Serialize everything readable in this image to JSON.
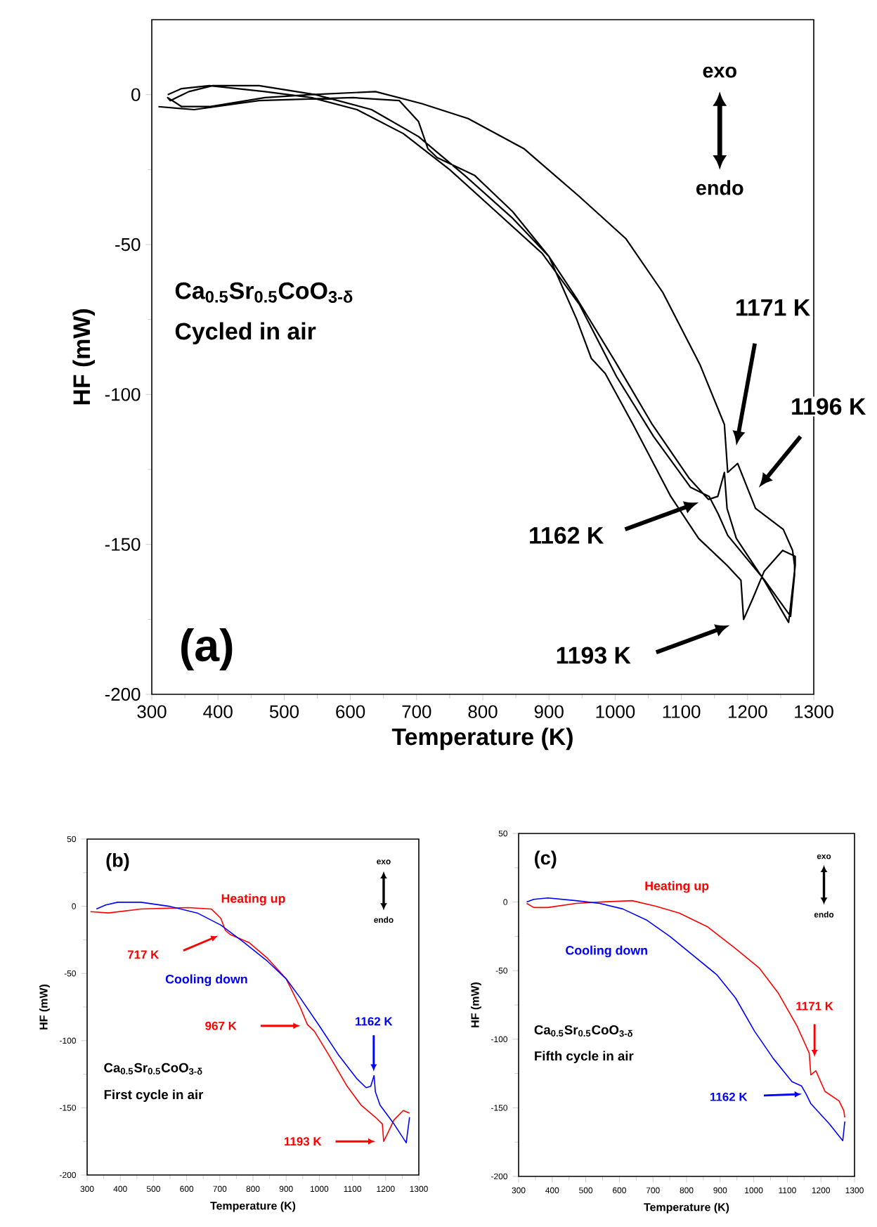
{
  "chart_data": [
    {
      "type": "line",
      "xlabel": "Temperature (K)",
      "ylabel": "HF (mW)",
      "xlim": [
        300,
        1300
      ],
      "ylim": [
        -200,
        25
      ],
      "xticks": [
        300,
        400,
        500,
        600,
        700,
        800,
        900,
        1000,
        1100,
        1200,
        1300
      ],
      "yticks": [
        -200,
        -150,
        -100,
        -50,
        0
      ],
      "series": [
        {
          "color": "#000000",
          "x": [
            310,
            364,
            462,
            604,
            674,
            703,
            717,
            731,
            788,
            845,
            900,
            942,
            964,
            985,
            1027,
            1084,
            1126,
            1169,
            1190,
            1194,
            1208,
            1225,
            1253,
            1272,
            1272,
            1262,
            1225,
            1183,
            1169,
            1165,
            1155,
            1141,
            1112,
            1056,
            1000,
            942,
            900,
            844,
            773,
            703,
            632,
            547,
            462,
            392,
            356,
            328,
            324,
            345,
            387,
            471,
            541,
            638,
            708,
            778,
            862,
            946,
            1016,
            1072,
            1128,
            1165,
            1170,
            1185,
            1212,
            1254,
            1268,
            1271,
            1271,
            1265,
            1226,
            1170,
            1156,
            1142,
            1114,
            1058,
            1002,
            946,
            890,
            820,
            750,
            680,
            610,
            541,
            471,
            387,
            345,
            324
          ],
          "values": [
            -4,
            -5,
            -2,
            -1,
            -2,
            -9,
            -18,
            -21,
            -27,
            -39,
            -54,
            -75,
            -88,
            -93,
            -110,
            -134,
            -148,
            -157,
            -162,
            -175,
            -168,
            -159,
            -152,
            -154,
            -157,
            -176,
            -162,
            -148,
            -138,
            -126,
            -134,
            -135,
            -128,
            -110,
            -89,
            -68,
            -54,
            -41,
            -27,
            -14,
            -5,
            0,
            3,
            3,
            1,
            -2,
            -1,
            -4,
            -4,
            -1,
            0,
            1,
            -3,
            -8,
            -18,
            -34,
            -48,
            -66,
            -90,
            -110,
            -126,
            -123,
            -138,
            -145,
            -152,
            -157,
            -160,
            -174,
            -162,
            -147,
            -140,
            -134,
            -131,
            -114,
            -94,
            -70,
            -53,
            -39,
            -25,
            -13,
            -5,
            -1,
            1,
            3,
            2,
            0
          ]
        }
      ],
      "annotations": [
        "exo",
        "endo",
        "Ca$_{0.5}$Sr$_{0.5}$CoO$_{3-δ}$",
        "Cycled in air",
        "(a)",
        "1171 K",
        "1196 K",
        "1162 K",
        "1193 K"
      ]
    },
    {
      "type": "line",
      "xlabel": "Temperature (K)",
      "ylabel": "HF (mW)",
      "xlim": [
        300,
        1300
      ],
      "ylim": [
        -200,
        50
      ],
      "xticks": [
        300,
        400,
        500,
        600,
        700,
        800,
        900,
        1000,
        1100,
        1200,
        1300
      ],
      "yticks": [
        -200,
        -150,
        -100,
        -50,
        0,
        50
      ],
      "series": [
        {
          "name": "Heating up",
          "color": "#ff0000",
          "x": [
            310,
            364,
            462,
            604,
            674,
            703,
            717,
            731,
            788,
            845,
            900,
            942,
            964,
            985,
            1027,
            1084,
            1126,
            1169,
            1190,
            1194,
            1208,
            1225,
            1253,
            1272
          ],
          "values": [
            -4,
            -5,
            -2,
            -1,
            -2,
            -9,
            -18,
            -21,
            -27,
            -39,
            -54,
            -75,
            -88,
            -93,
            -110,
            -134,
            -148,
            -157,
            -162,
            -175,
            -168,
            -159,
            -152,
            -154
          ]
        },
        {
          "name": "Cooling down",
          "color": "#0000ff",
          "x": [
            1272,
            1262,
            1225,
            1183,
            1169,
            1165,
            1155,
            1141,
            1112,
            1056,
            1000,
            942,
            900,
            844,
            773,
            703,
            632,
            547,
            462,
            392,
            356,
            328
          ],
          "values": [
            -157,
            -176,
            -162,
            -148,
            -138,
            -126,
            -134,
            -135,
            -128,
            -110,
            -89,
            -68,
            -54,
            -41,
            -27,
            -14,
            -5,
            0,
            3,
            3,
            1,
            -2
          ]
        }
      ],
      "annotations": [
        "(b)",
        "exo",
        "endo",
        "717 K",
        "967 K",
        "1162 K",
        "1193 K",
        "Ca$_{0.5}$Sr$_{0.5}$CoO$_{3-δ}$",
        "First cycle in air"
      ]
    },
    {
      "type": "line",
      "xlabel": "Temperature (K)",
      "ylabel": "HF (mW)",
      "xlim": [
        300,
        1300
      ],
      "ylim": [
        -200,
        50
      ],
      "xticks": [
        300,
        400,
        500,
        600,
        700,
        800,
        900,
        1000,
        1100,
        1200,
        1300
      ],
      "yticks": [
        -200,
        -150,
        -100,
        -50,
        0,
        50
      ],
      "series": [
        {
          "name": "Heating up",
          "color": "#ff0000",
          "x": [
            324,
            345,
            387,
            471,
            541,
            638,
            708,
            778,
            862,
            946,
            1016,
            1072,
            1128,
            1165,
            1170,
            1185,
            1212,
            1254,
            1268,
            1271
          ],
          "values": [
            -1,
            -4,
            -4,
            -1,
            0,
            1,
            -3,
            -8,
            -18,
            -34,
            -48,
            -66,
            -90,
            -110,
            -126,
            -123,
            -138,
            -145,
            -152,
            -157
          ]
        },
        {
          "name": "Cooling down",
          "color": "#0000ff",
          "x": [
            1271,
            1265,
            1226,
            1170,
            1156,
            1142,
            1114,
            1058,
            1002,
            946,
            890,
            820,
            750,
            680,
            610,
            541,
            471,
            387,
            345,
            324
          ],
          "values": [
            -160,
            -174,
            -162,
            -147,
            -140,
            -134,
            -131,
            -114,
            -94,
            -70,
            -53,
            -39,
            -25,
            -13,
            -5,
            -1,
            1,
            3,
            2,
            0
          ]
        }
      ],
      "annotations": [
        "(c)",
        "exo",
        "endo",
        "1171 K",
        "1162 K",
        "Ca$_{0.5}$Sr$_{0.5}$CoO$_{3-δ}$",
        "Fifth cycle in air"
      ]
    }
  ]
}
